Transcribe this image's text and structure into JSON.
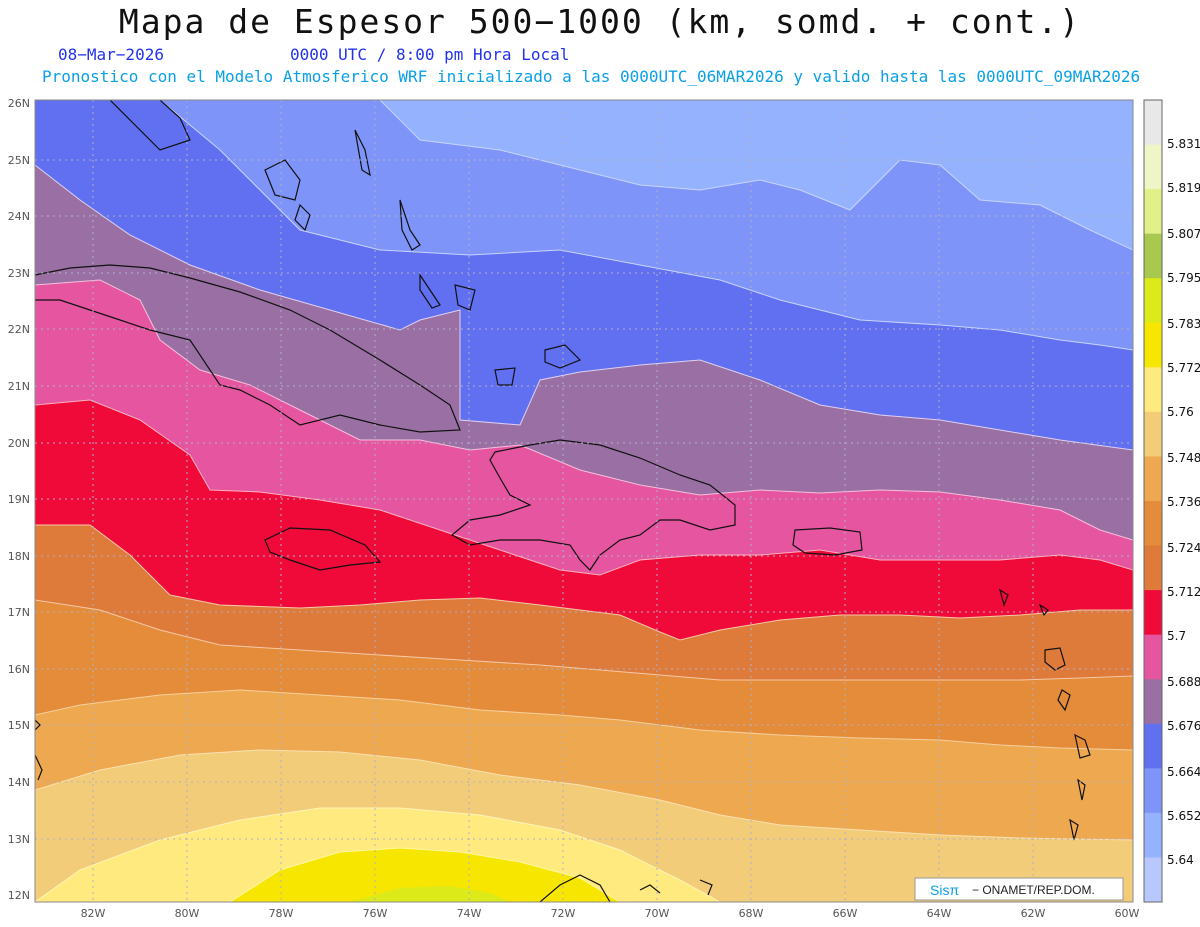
{
  "header": {
    "title": "Mapa de Espesor 500−1000 (km, somd. + cont.)",
    "date": "08−Mar−2026",
    "time": "0000 UTC / 8:00 pm Hora Local",
    "model": "Pronostico con el Modelo Atmosferico WRF inicializado a las 0000UTC_06MAR2026 y valido hasta las  0000UTC_09MAR2026"
  },
  "axes": {
    "lon_labels": [
      "82W",
      "80W",
      "78W",
      "76W",
      "74W",
      "72W",
      "70W",
      "68W",
      "66W",
      "64W",
      "62W",
      "60W"
    ],
    "lat_labels": [
      "26N",
      "25N",
      "24N",
      "23N",
      "22N",
      "21N",
      "20N",
      "19N",
      "18N",
      "17N",
      "16N",
      "15N",
      "14N",
      "13N",
      "12N"
    ]
  },
  "colorbar": {
    "labels": [
      "5.831",
      "5.819",
      "5.807",
      "5.795",
      "5.783",
      "5.772",
      "5.76",
      "5.748",
      "5.736",
      "5.724",
      "5.712",
      "5.7",
      "5.688",
      "5.676",
      "5.664",
      "5.652",
      "5.64"
    ],
    "colors": [
      "#e8e8e8",
      "#f0f5c8",
      "#e2f08a",
      "#a8c850",
      "#dcea1a",
      "#f7e600",
      "#ffea80",
      "#f2cc78",
      "#eda850",
      "#e48c3a",
      "#de7a3a",
      "#ef0a3a",
      "#e656a0",
      "#9a70a4",
      "#6070f0",
      "#7f94f8",
      "#95b2ff",
      "#b8c8ff"
    ]
  },
  "logo": {
    "brand": "Sisπ",
    "text": "− ONAMET/REP.DOM."
  }
}
